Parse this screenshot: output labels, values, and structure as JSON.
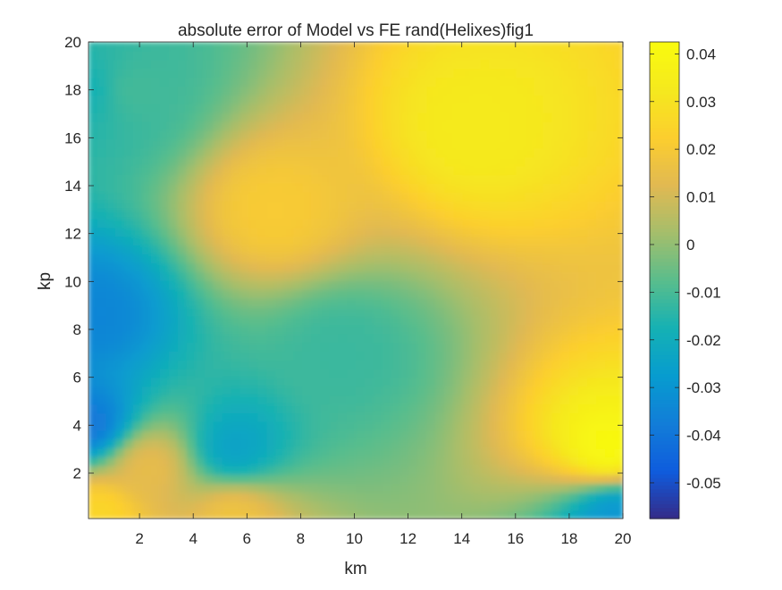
{
  "chart_data": {
    "type": "heatmap",
    "title": "absolute error of Model vs FE rand(Helixes)fig1",
    "xlabel": "km",
    "ylabel": "kp",
    "xlim": [
      0.1,
      20
    ],
    "ylim": [
      0.1,
      20
    ],
    "x_ticks": [
      2,
      4,
      6,
      8,
      10,
      12,
      14,
      16,
      18,
      20
    ],
    "y_ticks": [
      2,
      4,
      6,
      8,
      10,
      12,
      14,
      16,
      18,
      20
    ],
    "colorbar": {
      "min": -0.0575,
      "max": 0.0425,
      "ticks": [
        -0.05,
        -0.04,
        -0.03,
        -0.02,
        -0.01,
        0,
        0.01,
        0.02,
        0.03,
        0.04
      ],
      "tick_labels": [
        "-0.05",
        "-0.04",
        "-0.03",
        "-0.02",
        "-0.01",
        "0",
        "0.01",
        "0.02",
        "0.03",
        "0.04"
      ],
      "colormap": "parula"
    },
    "grid": false,
    "features": [
      {
        "x": 14.5,
        "y": 16.5,
        "value": 0.033
      },
      {
        "x": 19.5,
        "y": 3.0,
        "value": 0.042
      },
      {
        "x": 7.0,
        "y": 13.0,
        "value": 0.021
      },
      {
        "x": 5.5,
        "y": 3.0,
        "value": -0.025
      },
      {
        "x": 9.5,
        "y": 7.0,
        "value": -0.012
      },
      {
        "x": 1.5,
        "y": 18.0,
        "value": -0.01
      },
      {
        "x": 0.3,
        "y": 18.0,
        "value": -0.018
      },
      {
        "x": 0.2,
        "y": 8.5,
        "value": -0.035
      },
      {
        "x": 0.15,
        "y": 4.0,
        "value": -0.04
      },
      {
        "x": 0.5,
        "y": 0.4,
        "value": 0.026
      },
      {
        "x": 2.3,
        "y": 2.3,
        "value": 0.015
      },
      {
        "x": 5.5,
        "y": 0.25,
        "value": 0.018
      },
      {
        "x": 19.7,
        "y": 0.3,
        "value": -0.03
      }
    ]
  }
}
